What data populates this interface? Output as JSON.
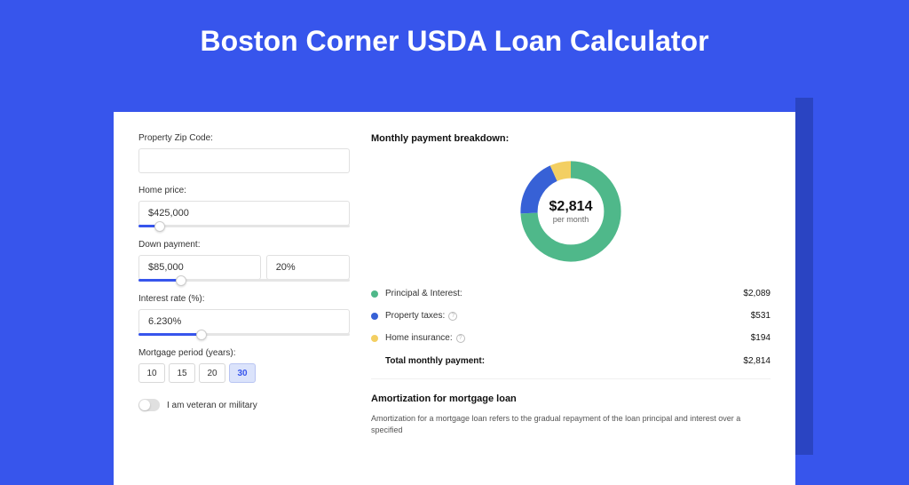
{
  "page": {
    "title": "Boston Corner USDA Loan Calculator",
    "background_color": "#3755ec",
    "card_background": "#ffffff"
  },
  "form": {
    "zip": {
      "label": "Property Zip Code:",
      "value": ""
    },
    "home_price": {
      "label": "Home price:",
      "value": "$425,000",
      "slider_pct": 10
    },
    "down_payment": {
      "label": "Down payment:",
      "value": "$85,000",
      "pct": "20%",
      "slider_pct": 20
    },
    "interest": {
      "label": "Interest rate (%):",
      "value": "6.230%",
      "slider_pct": 30
    },
    "period": {
      "label": "Mortgage period (years):",
      "options": [
        "10",
        "15",
        "20",
        "30"
      ],
      "selected": "30"
    },
    "veteran": {
      "label": "I am veteran or military",
      "checked": false
    }
  },
  "breakdown": {
    "title": "Monthly payment breakdown:",
    "donut": {
      "value": "$2,814",
      "sub": "per month",
      "segments": [
        {
          "label": "Principal & Interest",
          "pct": 74.2,
          "color": "#4fb88a"
        },
        {
          "label": "Property taxes",
          "pct": 18.9,
          "color": "#3761d6"
        },
        {
          "label": "Home insurance",
          "pct": 6.9,
          "color": "#f3cf62"
        }
      ]
    },
    "items": [
      {
        "label": "Principal & Interest:",
        "value": "$2,089",
        "color": "#4fb88a",
        "info": false
      },
      {
        "label": "Property taxes:",
        "value": "$531",
        "color": "#3761d6",
        "info": true
      },
      {
        "label": "Home insurance:",
        "value": "$194",
        "color": "#f3cf62",
        "info": true
      }
    ],
    "total": {
      "label": "Total monthly payment:",
      "value": "$2,814"
    }
  },
  "amortization": {
    "title": "Amortization for mortgage loan",
    "text": "Amortization for a mortgage loan refers to the gradual repayment of the loan principal and interest over a specified"
  }
}
